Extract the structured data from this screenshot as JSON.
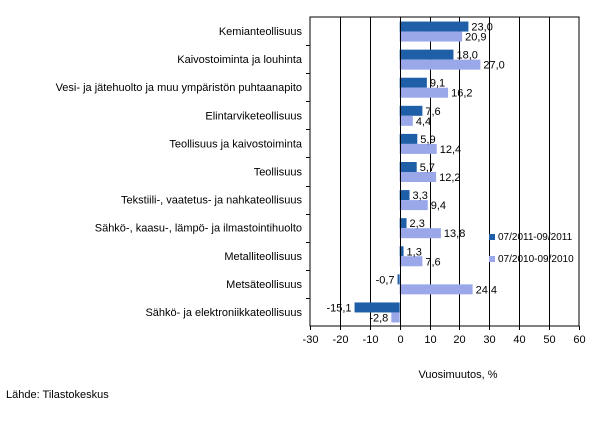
{
  "chart_data": {
    "type": "bar",
    "orientation": "horizontal",
    "categories": [
      "Kemianteollisuus",
      "Kaivostoiminta ja louhinta",
      "Vesi- ja jätehuolto ja muu ympäristön puhtaanapito",
      "Elintarviketeollisuus",
      "Teollisuus ja kaivostoiminta",
      "Teollisuus",
      "Tekstiili-, vaatetus- ja nahkateollisuus",
      "Sähkö-, kaasu-, lämpö- ja ilmastointihuolto",
      "Metalliteollisuus",
      "Metsäteollisuus",
      "Sähkö- ja elektroniikkateollisuus"
    ],
    "series": [
      {
        "name": "07/2011-09/2011",
        "color": "#1f5fa8",
        "values": [
          23.0,
          18.0,
          9.1,
          7.6,
          5.9,
          5.7,
          3.3,
          2.3,
          1.3,
          -0.7,
          -15.1
        ],
        "labels": [
          "23,0",
          "18,0",
          "9,1",
          "7,6",
          "5,9",
          "5,7",
          "3,3",
          "2,3",
          "1,3",
          "-0,7",
          "-15,1"
        ]
      },
      {
        "name": "07/2010-09/2010",
        "color": "#9aa8ea",
        "values": [
          20.9,
          27.0,
          16.2,
          4.4,
          12.4,
          12.2,
          9.4,
          13.8,
          7.6,
          24.4,
          -2.8
        ],
        "labels": [
          "20,9",
          "27,0",
          "16,2",
          "4,4",
          "12,4",
          "12,2",
          "9,4",
          "13,8",
          "7,6",
          "24,4",
          "-2,8"
        ]
      }
    ],
    "xlim": [
      -30,
      60
    ],
    "ticks": [
      -30,
      -20,
      -10,
      0,
      10,
      20,
      30,
      40,
      50,
      60
    ],
    "tick_labels": [
      "-30",
      "-20",
      "-10",
      "0",
      "10",
      "20",
      "30",
      "40",
      "50",
      "60"
    ],
    "xlabel": "Vuosimuutos, %",
    "grid": true,
    "legend_position": "right"
  },
  "source_text": "Lähde: Tilastokeskus"
}
